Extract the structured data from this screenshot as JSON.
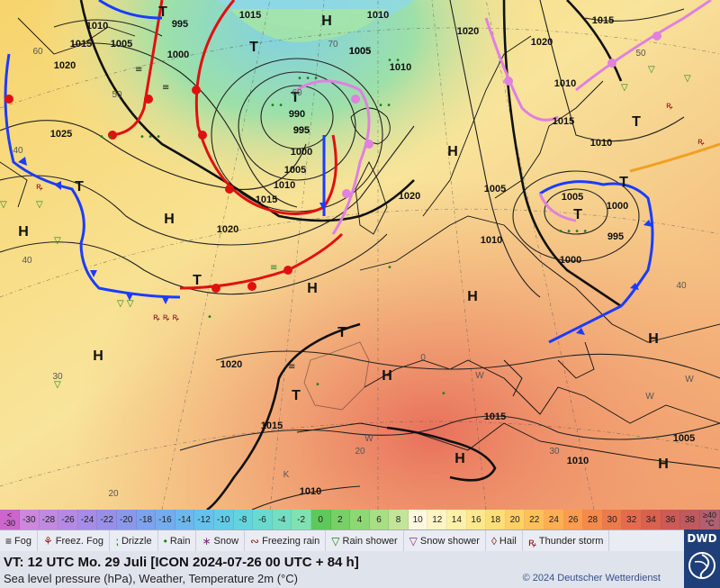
{
  "map": {
    "pressure_labels": [
      "995",
      "1015",
      "1010",
      "1005",
      "1000",
      "1020",
      "995",
      "1005",
      "1010",
      "990",
      "995",
      "1000",
      "1005",
      "1010",
      "1015",
      "1020",
      "1025",
      "1020",
      "1020",
      "1015",
      "1010",
      "1015",
      "1010",
      "1005",
      "1000",
      "995",
      "1000",
      "1005",
      "1010",
      "1020",
      "1015",
      "1010",
      "1005",
      "1010",
      "1020",
      "1015"
    ],
    "pressure_centers": [
      "H",
      "H",
      "H",
      "H",
      "H",
      "H",
      "H",
      "H",
      "H",
      "H",
      "H",
      "T",
      "T",
      "T",
      "T",
      "T",
      "T",
      "T"
    ],
    "weather_symbols": [
      "fog",
      "rain",
      "drizzle",
      "thunderstorm",
      "rain-shower"
    ],
    "temperature_labels": [
      "60",
      "50",
      "40",
      "40",
      "30",
      "20",
      "70",
      "60",
      "50",
      "40",
      "30",
      "20",
      "0",
      "W",
      "W",
      "W",
      "W",
      "K"
    ],
    "colors": {
      "warm_front": "#e01010",
      "cold_front": "#1a3cff",
      "occlusion": "#e080e0",
      "trough": "#111111"
    }
  },
  "scale": {
    "first_top": "<",
    "first_bottom": "-30",
    "values": [
      "-30",
      "-28",
      "-26",
      "-24",
      "-22",
      "-20",
      "-18",
      "-16",
      "-14",
      "-12",
      "-10",
      "-8",
      "-6",
      "-4",
      "-2",
      "0",
      "2",
      "4",
      "6",
      "8",
      "10",
      "12",
      "14",
      "16",
      "18",
      "20",
      "22",
      "24",
      "26",
      "28",
      "30",
      "32",
      "34",
      "36",
      "38"
    ],
    "colors": [
      "#cc88dd",
      "#c08ae0",
      "#b48ae4",
      "#a68ce6",
      "#9890e8",
      "#8a98ea",
      "#7ea2ec",
      "#74acee",
      "#6cb8ee",
      "#66c2ec",
      "#62cce6",
      "#64d4dc",
      "#6adad0",
      "#74dec2",
      "#80e2b2",
      "#5fc85a",
      "#76d066",
      "#8ed874",
      "#a8de84",
      "#c4e49a",
      "#fff8e0",
      "#fff4c4",
      "#fff0a8",
      "#ffe88c",
      "#ffde78",
      "#ffd066",
      "#ffc05a",
      "#ffae52",
      "#fc9c4e",
      "#f48a4c",
      "#ec7a4c",
      "#e46c4e",
      "#da6050",
      "#cc5a56",
      "#c05a5e"
    ],
    "last_top": "≥40",
    "last_bottom": "°C"
  },
  "legend": [
    {
      "icon": "fog-icon",
      "glyph": "≡",
      "label": "Fog"
    },
    {
      "icon": "freezing-fog-icon",
      "glyph": "⚘",
      "label": "Freez. Fog"
    },
    {
      "icon": "drizzle-icon",
      "glyph": "⁏",
      "label": "Drizzle"
    },
    {
      "icon": "rain-icon",
      "glyph": "•",
      "label": "Rain"
    },
    {
      "icon": "snow-icon",
      "glyph": "∗",
      "label": "Snow"
    },
    {
      "icon": "freezing-rain-icon",
      "glyph": "∾",
      "label": "Freezing rain"
    },
    {
      "icon": "rain-shower-icon",
      "glyph": "▽",
      "label": "Rain shower"
    },
    {
      "icon": "snow-shower-icon",
      "glyph": "▽",
      "label": "Snow shower"
    },
    {
      "icon": "hail-icon",
      "glyph": "◊",
      "label": "Hail"
    },
    {
      "icon": "thunderstorm-icon",
      "glyph": "ꝶ",
      "label": "Thunder storm"
    }
  ],
  "info": {
    "valid_time": "VT: 12 UTC Mo.   29 Juli [ICON 2024-07-26  00 UTC + 84 h]",
    "subtitle": "Sea level pressure (hPa), Weather, Temperature 2m (°C)",
    "copyright": "© 2024 Deutscher Wetterdienst",
    "logo": "DWD"
  }
}
